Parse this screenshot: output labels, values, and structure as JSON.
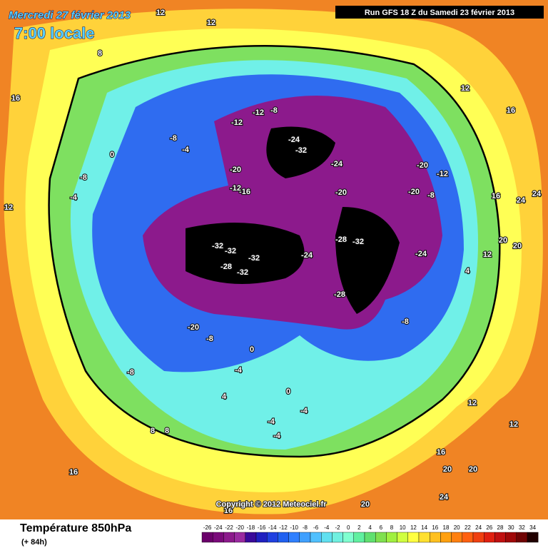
{
  "header": {
    "title": "Mercredi 27 février 2013",
    "time": "7:00 locale",
    "run": "Run GFS 18 Z du Samedi 23 février 2013"
  },
  "footer": {
    "parameter": "Température 850hPa",
    "lead": "(+ 84h)",
    "copyright": "Copyright © 2012 Meteociel.fr"
  },
  "scale": {
    "labels": [
      -26,
      -24,
      -22,
      -20,
      -18,
      -16,
      -14,
      -12,
      -10,
      -8,
      -6,
      -4,
      -2,
      0,
      2,
      4,
      6,
      8,
      10,
      12,
      14,
      16,
      18,
      20,
      22,
      24,
      26,
      28,
      30,
      32,
      34
    ],
    "colors": [
      "#6a006a",
      "#7a0a7a",
      "#8c1a8c",
      "#9a2aa0",
      "#3a0a9a",
      "#2020c0",
      "#2040e0",
      "#2060f0",
      "#3080ff",
      "#40a0ff",
      "#50c0ff",
      "#60e0f0",
      "#70f0e0",
      "#80ffd0",
      "#60f0a0",
      "#60e070",
      "#80e050",
      "#a0f040",
      "#d0ff40",
      "#ffff40",
      "#ffe030",
      "#ffc020",
      "#ffa010",
      "#ff8010",
      "#ff6010",
      "#f04010",
      "#e02010",
      "#c01010",
      "#a00808",
      "#700404",
      "#200000"
    ]
  },
  "map_labels": [
    "12",
    "12",
    "8",
    "16",
    "12",
    "16",
    "-12",
    "-8",
    "-12",
    "-8",
    "-4",
    "0",
    "-24",
    "-32",
    "-24",
    "-20",
    "-12",
    "-20",
    "-12",
    "-16",
    "-20",
    "-20",
    "-8",
    "-8",
    "-4",
    "-32",
    "-32",
    "-32",
    "-28",
    "-32",
    "-24",
    "-28",
    "-32",
    "-24",
    "-28",
    "-20",
    "-8",
    "0",
    "-4",
    "-8",
    "-8",
    "4",
    "0",
    "-4",
    "-4",
    "-4",
    "8",
    "8",
    "16",
    "12",
    "12",
    "16",
    "20",
    "20",
    "24",
    "20",
    "16",
    "20",
    "24",
    "24",
    "20",
    "16",
    "12",
    "4",
    "12"
  ]
}
